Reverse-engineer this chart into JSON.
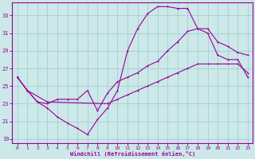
{
  "xlabel": "Windchill (Refroidissement éolien,°C)",
  "background_color": "#cce8e8",
  "line_color": "#990099",
  "grid_color": "#99cccc",
  "ylim": [
    18.5,
    34.5
  ],
  "xlim": [
    -0.5,
    23.5
  ],
  "yticks": [
    19,
    21,
    23,
    25,
    27,
    29,
    31,
    33
  ],
  "xticks": [
    0,
    1,
    2,
    3,
    4,
    5,
    6,
    7,
    8,
    9,
    10,
    11,
    12,
    13,
    14,
    15,
    16,
    17,
    18,
    19,
    20,
    21,
    22,
    23
  ],
  "series1_x": [
    0,
    1,
    2,
    3,
    4,
    5,
    6,
    7,
    8,
    9,
    10,
    11,
    12,
    13,
    14,
    15,
    16,
    17,
    18,
    19,
    20,
    21,
    22,
    23
  ],
  "series1_y": [
    26.0,
    24.5,
    23.2,
    22.5,
    21.5,
    20.8,
    20.2,
    19.5,
    21.2,
    22.5,
    24.5,
    29.0,
    31.5,
    33.2,
    34.0,
    34.0,
    33.8,
    33.8,
    31.5,
    31.0,
    28.5,
    28.0,
    28.0,
    26.0
  ],
  "series2_x": [
    0,
    1,
    2,
    3,
    4,
    5,
    6,
    7,
    8,
    9,
    10,
    11,
    12,
    13,
    14,
    15,
    16,
    17,
    18,
    19,
    20,
    21,
    22,
    23
  ],
  "series2_y": [
    26.0,
    24.5,
    23.2,
    23.0,
    23.5,
    23.5,
    23.5,
    24.5,
    22.2,
    24.2,
    25.5,
    26.0,
    26.5,
    27.3,
    27.8,
    29.0,
    30.0,
    31.2,
    31.5,
    31.5,
    30.0,
    29.5,
    28.8,
    28.5
  ],
  "series3_x": [
    0,
    1,
    3,
    9,
    10,
    11,
    12,
    13,
    14,
    15,
    16,
    17,
    18,
    19,
    20,
    21,
    22,
    23
  ],
  "series3_y": [
    26.0,
    24.5,
    23.2,
    23.0,
    23.5,
    24.0,
    24.5,
    25.0,
    25.5,
    26.0,
    26.5,
    27.0,
    27.5,
    27.5,
    27.5,
    27.5,
    27.5,
    26.5
  ]
}
